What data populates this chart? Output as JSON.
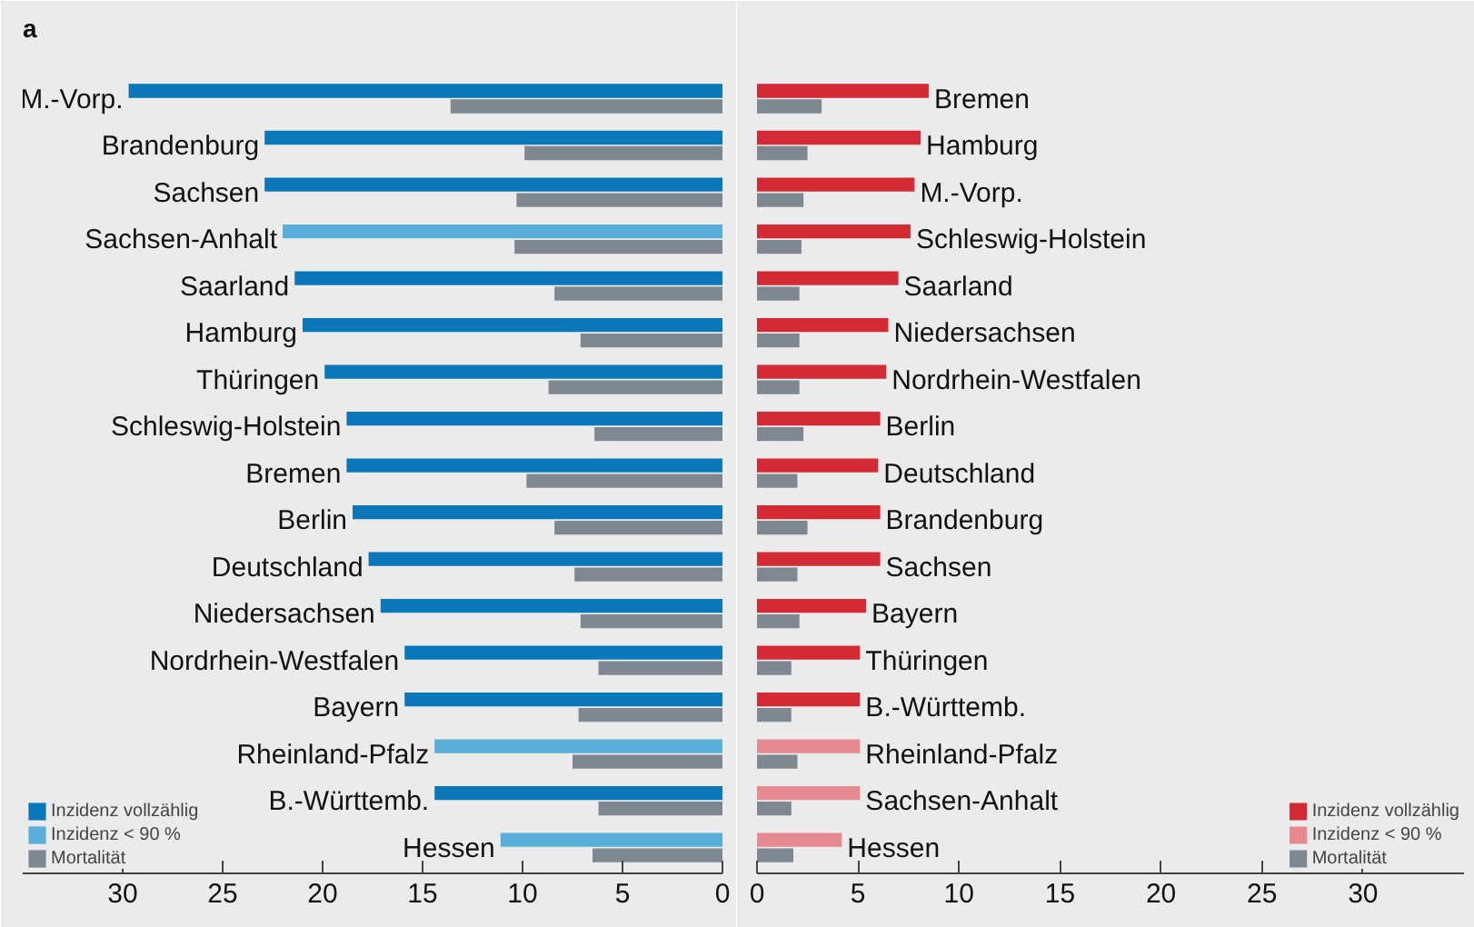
{
  "chart_data": [
    {
      "type": "bar",
      "orientation": "horizontal",
      "title": "a",
      "categories": [
        "M.-Vorp.",
        "Brandenburg",
        "Sachsen",
        "Sachsen-Anhalt",
        "Saarland",
        "Hamburg",
        "Thüringen",
        "Schleswig-Holstein",
        "Bremen",
        "Berlin",
        "Deutschland",
        "Niedersachsen",
        "Nordrhein-Westfalen",
        "Bayern",
        "Rheinland-Pfalz",
        "B.-Württemb.",
        "Hessen"
      ],
      "series": [
        {
          "name": "Inzidenz vollzählig",
          "color": "#0a78b8",
          "values": [
            29.7,
            22.9,
            22.9,
            null,
            21.4,
            21.0,
            19.9,
            18.8,
            18.8,
            18.5,
            17.7,
            17.1,
            15.9,
            15.9,
            null,
            14.4,
            null
          ]
        },
        {
          "name": "Inzidenz < 90 %",
          "color": "#5aafd8",
          "values": [
            null,
            null,
            null,
            22.0,
            null,
            null,
            null,
            null,
            null,
            null,
            null,
            null,
            null,
            null,
            14.4,
            null,
            11.1
          ]
        },
        {
          "name": "Mortalität",
          "color": "#7f8890",
          "values": [
            13.6,
            9.9,
            10.3,
            10.4,
            8.4,
            7.1,
            8.7,
            6.4,
            9.8,
            8.4,
            7.4,
            7.1,
            6.2,
            7.2,
            7.5,
            6.2,
            6.5
          ]
        }
      ],
      "xlim": [
        35,
        0
      ],
      "xticks": [
        30,
        25,
        20,
        15,
        10,
        5,
        0
      ],
      "legend": "bottom left",
      "grid": false
    },
    {
      "type": "bar",
      "orientation": "horizontal",
      "categories": [
        "Bremen",
        "Hamburg",
        "M.-Vorp.",
        "Schleswig-Holstein",
        "Saarland",
        "Niedersachsen",
        "Nordrhein-Westfalen",
        "Berlin",
        "Deutschland",
        "Brandenburg",
        "Sachsen",
        "Bayern",
        "Thüringen",
        "B.-Württemb.",
        "Rheinland-Pfalz",
        "Sachsen-Anhalt",
        "Hessen"
      ],
      "series": [
        {
          "name": "Inzidenz vollzählig",
          "color": "#d42a35",
          "values": [
            8.5,
            8.1,
            7.8,
            7.6,
            7.0,
            6.5,
            6.4,
            6.1,
            6.0,
            6.1,
            6.1,
            5.4,
            5.1,
            5.1,
            null,
            null,
            null
          ]
        },
        {
          "name": "Inzidenz < 90 %",
          "color": "#e48a90",
          "values": [
            null,
            null,
            null,
            null,
            null,
            null,
            null,
            null,
            null,
            null,
            null,
            null,
            null,
            null,
            5.1,
            5.1,
            4.2
          ]
        },
        {
          "name": "Mortalität",
          "color": "#7f8890",
          "values": [
            3.2,
            2.5,
            2.3,
            2.2,
            2.1,
            2.1,
            2.1,
            2.3,
            2.0,
            2.5,
            2.0,
            2.1,
            1.7,
            1.7,
            2.0,
            1.7,
            1.8
          ]
        }
      ],
      "xlim": [
        0,
        35
      ],
      "xticks": [
        0,
        5,
        10,
        15,
        20,
        25,
        30
      ],
      "legend": "bottom right",
      "grid": false
    }
  ]
}
